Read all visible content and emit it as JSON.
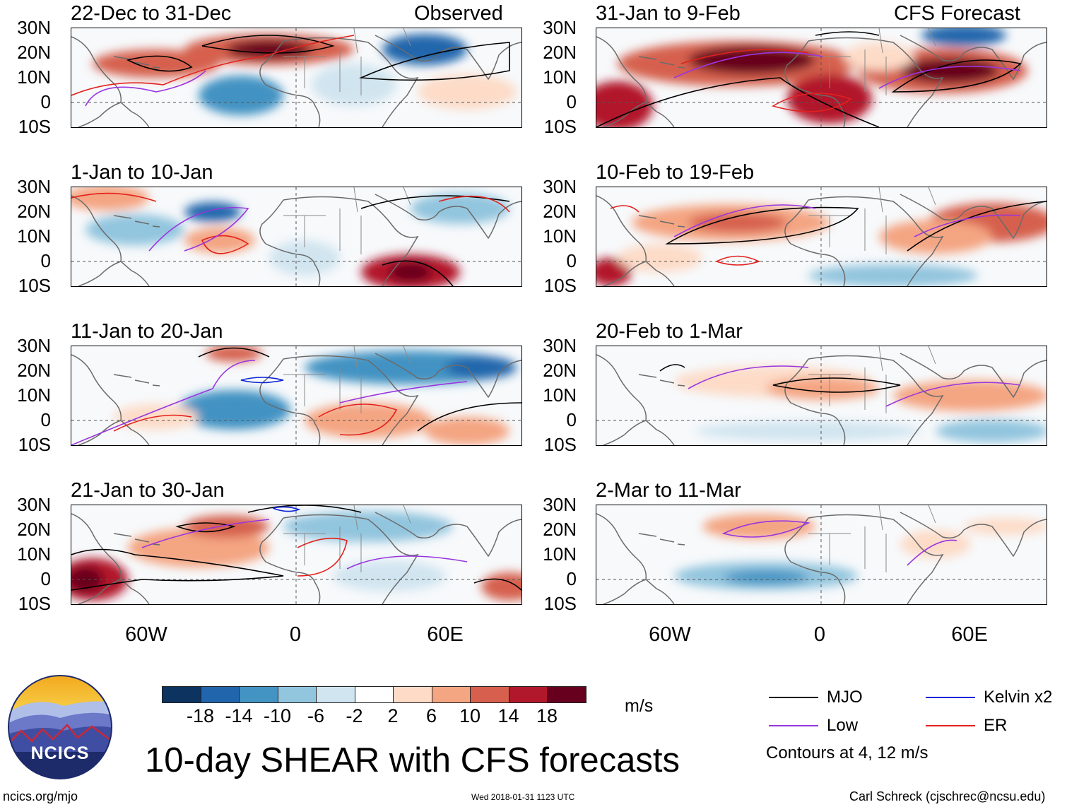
{
  "chart_data": {
    "type": "heatmap",
    "title": "10-day SHEAR with CFS forecasts",
    "left_column_label": "Observed",
    "right_column_label": "CFS Forecast",
    "panels": [
      {
        "id": "p1",
        "title": "22-Dec to 31-Dec",
        "source": "Observed"
      },
      {
        "id": "p2",
        "title": "1-Jan to 10-Jan",
        "source": "Observed"
      },
      {
        "id": "p3",
        "title": "11-Jan to 20-Jan",
        "source": "Observed"
      },
      {
        "id": "p4",
        "title": "21-Jan to 30-Jan",
        "source": "Observed"
      },
      {
        "id": "p5",
        "title": "31-Jan to 9-Feb",
        "source": "CFS Forecast"
      },
      {
        "id": "p6",
        "title": "10-Feb to 19-Feb",
        "source": "CFS Forecast"
      },
      {
        "id": "p7",
        "title": "20-Feb to 1-Mar",
        "source": "CFS Forecast"
      },
      {
        "id": "p8",
        "title": "2-Mar to 11-Mar",
        "source": "CFS Forecast"
      }
    ],
    "lat_ticks": [
      "30N",
      "20N",
      "10N",
      "0",
      "10S"
    ],
    "lon_ticks": [
      "60W",
      "0",
      "60E"
    ],
    "colorbar": {
      "unit": "m/s",
      "tick_labels": [
        "-18",
        "-14",
        "-10",
        "-6",
        "-2",
        "2",
        "6",
        "10",
        "14",
        "18"
      ],
      "colors": [
        "#0d3361",
        "#2166ac",
        "#4393c3",
        "#92c5de",
        "#d1e5f0",
        "#ffffff",
        "#fddbc7",
        "#f4a582",
        "#d6604d",
        "#b2182b",
        "#67001f"
      ]
    },
    "contours_note": "Contours at 4, 12 m/s",
    "legend": [
      {
        "label": "MJO",
        "color": "#000000"
      },
      {
        "label": "Kelvin x2",
        "color": "#0b24d6"
      },
      {
        "label": "Low",
        "color": "#9a35e0"
      },
      {
        "label": "ER",
        "color": "#e3211c"
      }
    ]
  },
  "logo": {
    "text": "NCICS"
  },
  "footer": {
    "url": "ncics.org/mjo",
    "timestamp": "Wed 2018-01-31 1123 UTC",
    "credit": "Carl Schreck (cjschrec@ncsu.edu)"
  }
}
